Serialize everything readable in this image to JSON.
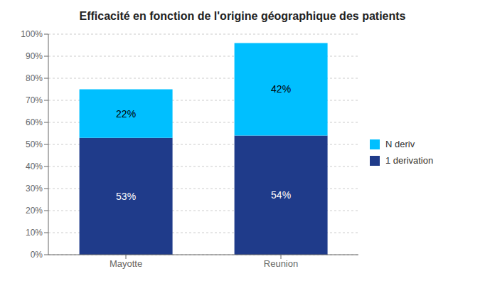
{
  "chart_data": {
    "type": "bar",
    "title": "Efficacité en fonction de l'origine géographique des patients",
    "categories": [
      "Mayotte",
      "Reunion"
    ],
    "series": [
      {
        "name": "1 derivation",
        "color": "#1F3B8A",
        "values": [
          53,
          54
        ],
        "value_labels": [
          "53%",
          "54%"
        ]
      },
      {
        "name": "N deriv",
        "color": "#00BFFF",
        "values": [
          22,
          42
        ],
        "value_labels": [
          "22%",
          "42%"
        ]
      }
    ],
    "stacked": true,
    "data_labels": true,
    "ylim": [
      0,
      100
    ],
    "yticks": [
      {
        "value": 0,
        "label": "0%"
      },
      {
        "value": 10,
        "label": "10%"
      },
      {
        "value": 20,
        "label": "20%"
      },
      {
        "value": 30,
        "label": "30%"
      },
      {
        "value": 40,
        "label": "40%"
      },
      {
        "value": 50,
        "label": "50%"
      },
      {
        "value": 60,
        "label": "60%"
      },
      {
        "value": 70,
        "label": "70%"
      },
      {
        "value": 80,
        "label": "80%"
      },
      {
        "value": 90,
        "label": "90%"
      },
      {
        "value": 100,
        "label": "100%"
      }
    ],
    "grid": true,
    "legend": "right"
  }
}
